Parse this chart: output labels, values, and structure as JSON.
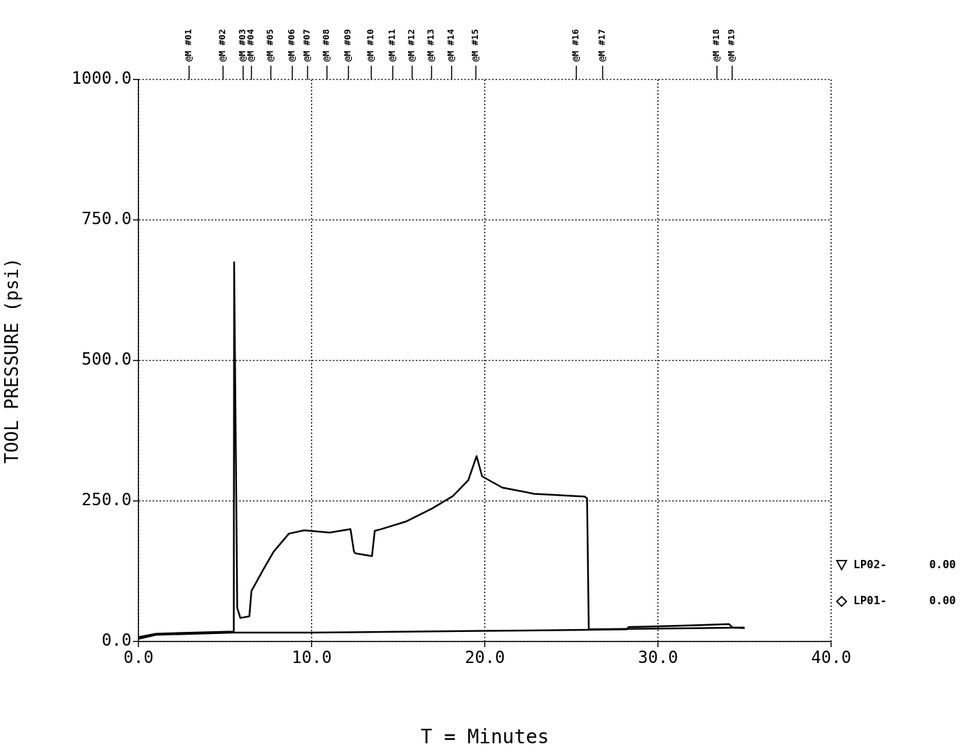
{
  "chart_data": {
    "type": "line",
    "xlabel": "T = Minutes",
    "ylabel": "TOOL PRESSURE (psi)",
    "xlim": [
      0,
      40
    ],
    "xticks": [
      {
        "value": 0,
        "label": "0.0"
      },
      {
        "value": 10,
        "label": "10.0"
      },
      {
        "value": 20,
        "label": "20.0"
      },
      {
        "value": 30,
        "label": "30.0"
      },
      {
        "value": 40,
        "label": "40.0"
      }
    ],
    "ylim": [
      0,
      1000
    ],
    "yticks": [
      {
        "value": 0,
        "label": "0.0"
      },
      {
        "value": 250,
        "label": "250.0"
      },
      {
        "value": 500,
        "label": "500.0"
      },
      {
        "value": 750,
        "label": "750.0"
      },
      {
        "value": 1000,
        "label": "1000.0"
      }
    ],
    "grid": true,
    "line_style": "solid",
    "legend": "right",
    "annotations": [
      "0.00",
      "0.00"
    ],
    "ref_lines": [
      {
        "axis": "x",
        "value": 2.92,
        "label": "@M #01"
      },
      {
        "axis": "x",
        "value": 4.88,
        "label": "@M #02"
      },
      {
        "axis": "x",
        "value": 6.04,
        "label": "@M #03"
      },
      {
        "axis": "x",
        "value": 6.52,
        "label": "@M #04"
      },
      {
        "axis": "x",
        "value": 7.64,
        "label": "@M #05"
      },
      {
        "axis": "x",
        "value": 8.88,
        "label": "@M #06"
      },
      {
        "axis": "x",
        "value": 9.76,
        "label": "@M #07"
      },
      {
        "axis": "x",
        "value": 10.88,
        "label": "@M #08"
      },
      {
        "axis": "x",
        "value": 12.12,
        "label": "@M #09"
      },
      {
        "axis": "x",
        "value": 13.44,
        "label": "@M #10"
      },
      {
        "axis": "x",
        "value": 14.68,
        "label": "@M #11"
      },
      {
        "axis": "x",
        "value": 15.8,
        "label": "@M #12"
      },
      {
        "axis": "x",
        "value": 16.92,
        "label": "@M #13"
      },
      {
        "axis": "x",
        "value": 18.08,
        "label": "@M #14"
      },
      {
        "axis": "x",
        "value": 19.48,
        "label": "@M #15"
      },
      {
        "axis": "x",
        "value": 25.28,
        "label": "@M #16"
      },
      {
        "axis": "x",
        "value": 26.8,
        "label": "@M #17"
      },
      {
        "axis": "x",
        "value": 33.4,
        "label": "@M #18"
      },
      {
        "axis": "x",
        "value": 34.28,
        "label": "@M #19"
      }
    ],
    "series": [
      {
        "name": "LP02-",
        "color": "#000000",
        "x": [
          0,
          1,
          5.5,
          5.52,
          5.7,
          5.88,
          6.4,
          6.52,
          7.2,
          7.8,
          8.68,
          9.56,
          11.04,
          12.24,
          12.44,
          12.52,
          13.48,
          13.64,
          14,
          15.48,
          16.96,
          18.16,
          19.04,
          19.52,
          19.84,
          21,
          22.84,
          25.76,
          25.9,
          26,
          30,
          35
        ],
        "values": [
          8,
          14,
          18,
          675,
          60,
          42,
          45,
          90,
          128,
          160,
          192,
          198,
          194,
          200,
          160,
          157,
          152,
          197,
          200,
          214,
          237,
          259,
          287,
          330,
          294,
          274,
          263,
          258,
          255,
          22,
          23,
          25
        ]
      },
      {
        "name": "LP01-",
        "color": "#000000",
        "x": [
          0,
          1,
          5.5,
          10,
          20,
          26,
          28.2,
          28.3,
          30,
          34.1,
          34.3,
          35
        ],
        "values": [
          5,
          12,
          16,
          16,
          19,
          21,
          22,
          26,
          27,
          31,
          25,
          24
        ]
      }
    ]
  }
}
